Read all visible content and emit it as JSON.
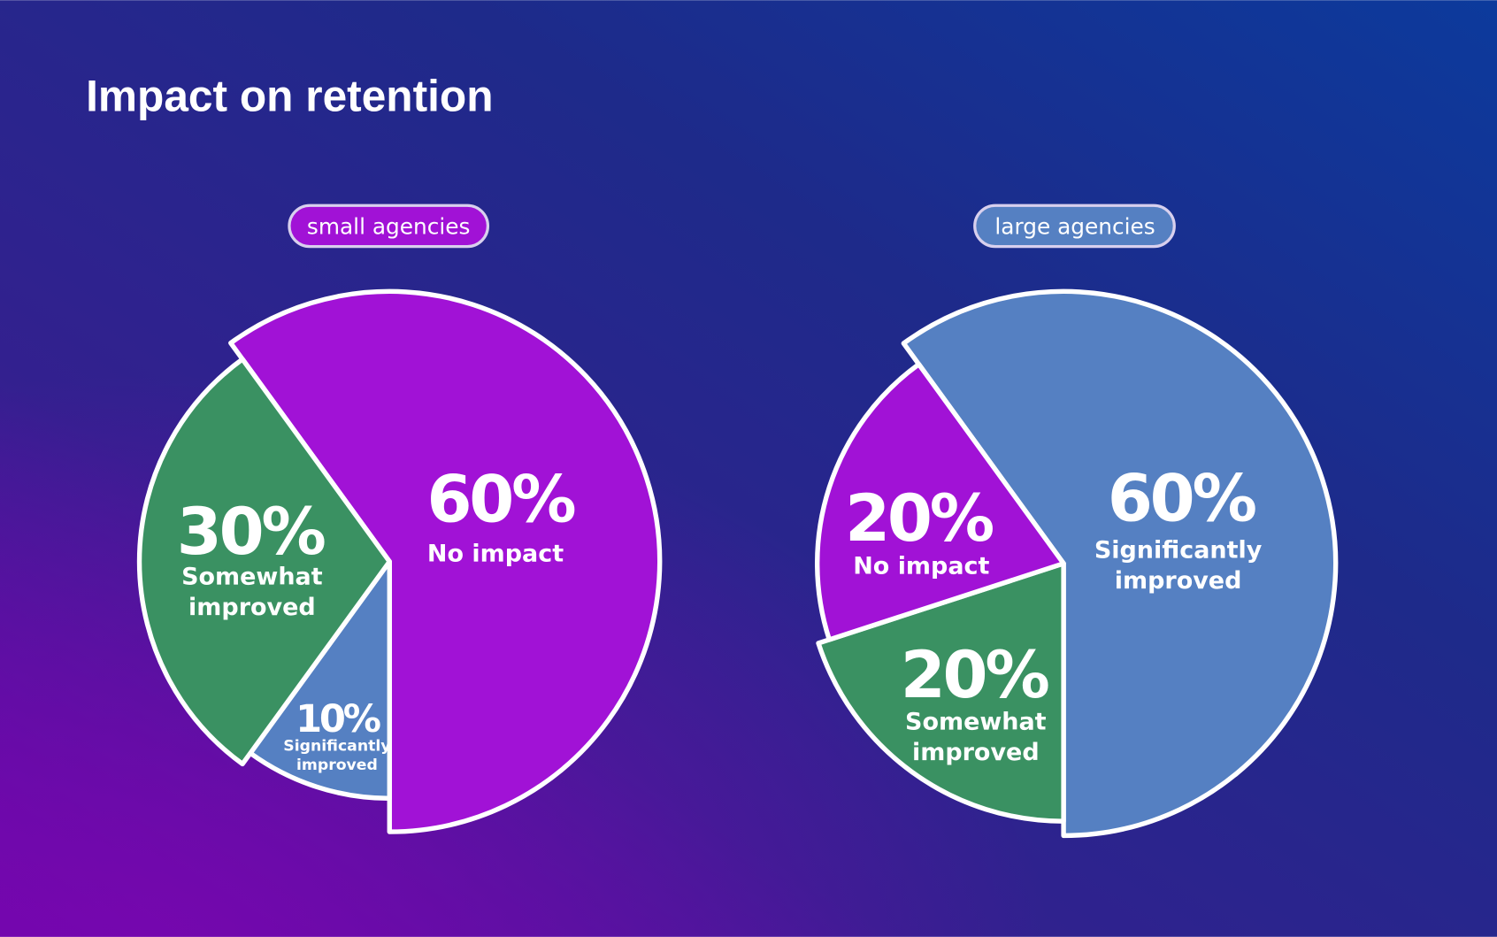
{
  "title": "Impact on retention",
  "colors": {
    "no_impact": "#a112d6",
    "somewhat": "#3a9162",
    "significantly": "#5580c2",
    "background_top": "#1b2a88",
    "background_bottom": "#6a06aa"
  },
  "chart_data": [
    {
      "type": "pie",
      "title": "small agencies",
      "categories": [
        "No impact",
        "Significantly improved",
        "Somewhat improved"
      ],
      "values": [
        60,
        10,
        30
      ],
      "labels": [
        {
          "pct": "60%",
          "line1": "No impact",
          "line2": ""
        },
        {
          "pct": "10%",
          "line1": "Significantly",
          "line2": "improved"
        },
        {
          "pct": "30%",
          "line1": "Somewhat",
          "line2": "improved"
        }
      ]
    },
    {
      "type": "pie",
      "title": "large agencies",
      "categories": [
        "Significantly improved",
        "Somewhat improved",
        "No impact"
      ],
      "values": [
        60,
        20,
        20
      ],
      "labels": [
        {
          "pct": "60%",
          "line1": "Significantly",
          "line2": "improved"
        },
        {
          "pct": "20%",
          "line1": "Somewhat",
          "line2": "improved"
        },
        {
          "pct": "20%",
          "line1": "No impact",
          "line2": ""
        }
      ]
    }
  ]
}
